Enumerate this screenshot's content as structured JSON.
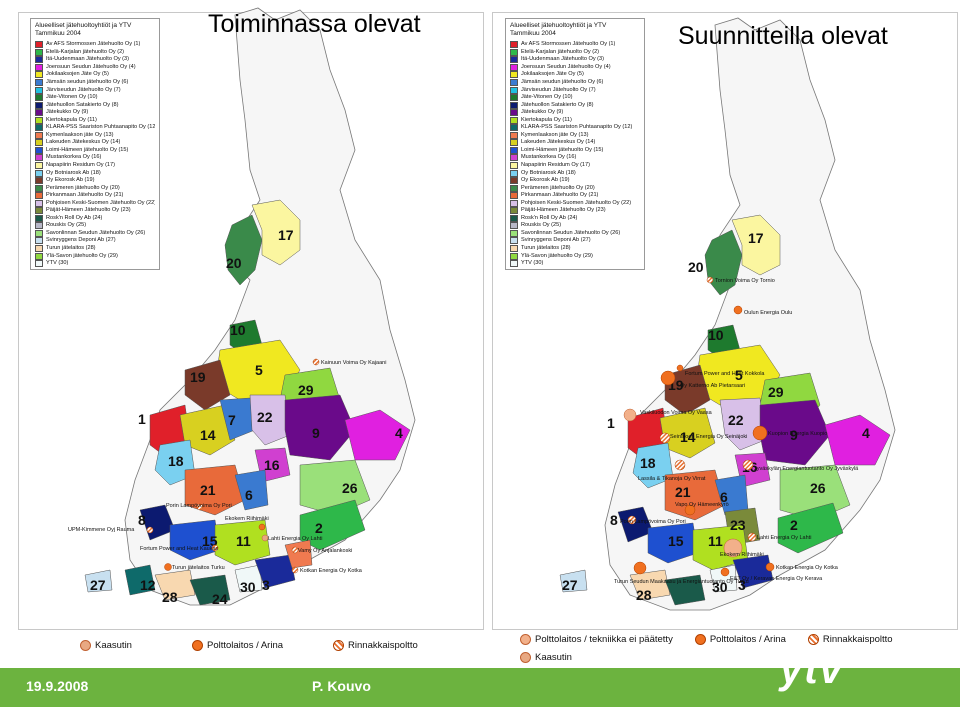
{
  "titles": {
    "left": "Toiminnassa olevat",
    "right": "Suunnitteilla olevat"
  },
  "legend": {
    "heading": "Alueelliset jätehuoltoyhtiöt ja YTV",
    "subheading": "Tammikuu 2004",
    "items": [
      {
        "label": "Av AFS Stormossen Jätehuolto Oy (1)",
        "color": "#e0202a"
      },
      {
        "label": "Etelä-Karjalan jätehuolto Oy (2)",
        "color": "#2eb84a"
      },
      {
        "label": "Itä-Uudenmaan Jätehuolto Oy (3)",
        "color": "#1a2a9a"
      },
      {
        "label": "Joensuun Seudun Jätehuolto Oy (4)",
        "color": "#e020e0"
      },
      {
        "label": "Jokilaaksojen Jäte Oy (5)",
        "color": "#f0e820"
      },
      {
        "label": "Jämsän seudun jätehuolto Oy (6)",
        "color": "#3a7ad0"
      },
      {
        "label": "Järviseudun Jätehuolto Oy (7)",
        "color": "#20c0e0"
      },
      {
        "label": "Jäte-Vitonen Oy (10)",
        "color": "#1e7a2e"
      },
      {
        "label": "Jätehuollon Satakierto Oy (8)",
        "color": "#0c1a70"
      },
      {
        "label": "Jätekukko Oy (9)",
        "color": "#6a0a8a"
      },
      {
        "label": "Kiertokapula Oy (11)",
        "color": "#b0e020"
      },
      {
        "label": "KLARA-PSS Saariston Puhtaanapito Oy (12)",
        "color": "#0e6a6a"
      },
      {
        "label": "Kymenlaakson jäte Oy (13)",
        "color": "#f07a50"
      },
      {
        "label": "Lakeuden Jätekeskus Oy (14)",
        "color": "#d8d020"
      },
      {
        "label": "Loimi-Hämeen jätehuolto Oy (15)",
        "color": "#1e50d0"
      },
      {
        "label": "Mustankorkea Oy (16)",
        "color": "#d040d0"
      },
      {
        "label": "Napapiirin Residum Oy (17)",
        "color": "#fbf6a0"
      },
      {
        "label": "Oy Botniarosk Ab (18)",
        "color": "#7ad0f0"
      },
      {
        "label": "Oy Ekorosk Ab (19)",
        "color": "#7a3a2a"
      },
      {
        "label": "Perämeren jätehuolto Oy (20)",
        "color": "#3a8a4a"
      },
      {
        "label": "Pirkanmaan Jätehuolto Oy (21)",
        "color": "#e86a3a"
      },
      {
        "label": "Pohjoisen Keski-Suomen Jätehuolto Oy (22)",
        "color": "#d8c0e8"
      },
      {
        "label": "Päijät-Hämeen Jätehuolto Oy (23)",
        "color": "#7a8a3a"
      },
      {
        "label": "Rosk'n Roll Oy Ab (24)",
        "color": "#1a5a4a"
      },
      {
        "label": "Rouskis Oy (25)",
        "color": "#b8b8c8"
      },
      {
        "label": "Savonlinnan Seudun Jätehuolto Oy (26)",
        "color": "#9ae07a"
      },
      {
        "label": "Svinryggens Deponi Ab (27)",
        "color": "#c8e0f0"
      },
      {
        "label": "Turun jätelaitos (28)",
        "color": "#f8d8b0"
      },
      {
        "label": "Ylä-Savon jätehuolto Oy (29)",
        "color": "#90d840"
      },
      {
        "label": "YTV (30)",
        "color": "#f0f8f8"
      }
    ]
  },
  "map_numbers_left": [
    "20",
    "17",
    "10",
    "19",
    "5",
    "29",
    "1",
    "22",
    "7",
    "14",
    "9",
    "4",
    "18",
    "16",
    "21",
    "6",
    "26",
    "8",
    "15",
    "11",
    "2",
    "27",
    "12",
    "28",
    "24",
    "30",
    "3"
  ],
  "map_numbers_right": [
    "20",
    "17",
    "10",
    "19",
    "5",
    "29",
    "1",
    "22",
    "14",
    "9",
    "4",
    "18",
    "16",
    "21",
    "6",
    "26",
    "8",
    "23",
    "15",
    "11",
    "2",
    "27",
    "28",
    "30",
    "3"
  ],
  "plant_labels_left": [
    "Kainuun Voima Oy Kajaani",
    "Porin Lampövoima Oy Pori",
    "UPM-Kimmene Oyj Rauma",
    "Fortum Power and Heat Kaukas",
    "Turun jätelaitos Turku",
    "Ekokem Riihimäki",
    "Lahti Energia Oy Lahti",
    "Vamy Oy Anjalankoski",
    "Kotkan Energia Oy Kotka"
  ],
  "plant_labels_right": [
    "Tornion Voima Oy Tornio",
    "Oulun Energia Oulu",
    "Fortum Power and Heat Kokkola",
    "Oy Katterno Ab Pietarsaari",
    "Vaskiluodon Voima Oy Vaasa",
    "Seinäjoen Energia Oy Seinäjoki",
    "Kuopion Energia Kuopio",
    "Jyväskylän Energiantuotanto Oy Jyväskylä",
    "Lassila & Tikanoja Oy Virrat",
    "Vapo Oy Hämeenkyrö",
    "Porin Lampövoima Oy Pori",
    "Lahti Energia Oy Lahti",
    "Ekokem Riihimäki",
    "Kotkan Energia Oy Kotka",
    "Turun Seudun Maakaasu ja Energiantuotanto Oy Turku",
    "E&T Oy / Keravan Energia Oy Kerava"
  ],
  "key_left": {
    "kaasutin": "Kaasutin",
    "polttolaitos": "Polttolaitos / Arina",
    "rinnakkais": "Rinnakkaispoltto"
  },
  "key_right": {
    "tekniikka": "Polttolaitos / tekniikka ei päätetty",
    "polttolaitos": "Polttolaitos / Arina",
    "rinnakkais": "Rinnakkaispoltto",
    "kaasutin": "Kaasutin"
  },
  "footer": {
    "date": "19.9.2008",
    "presenter": "P. Kouvo",
    "logo": "ytv"
  },
  "colors": {
    "footer_green": "#6cb33f",
    "poltto_orange": "#f07020",
    "kaasutin_peach": "#e8a882"
  }
}
